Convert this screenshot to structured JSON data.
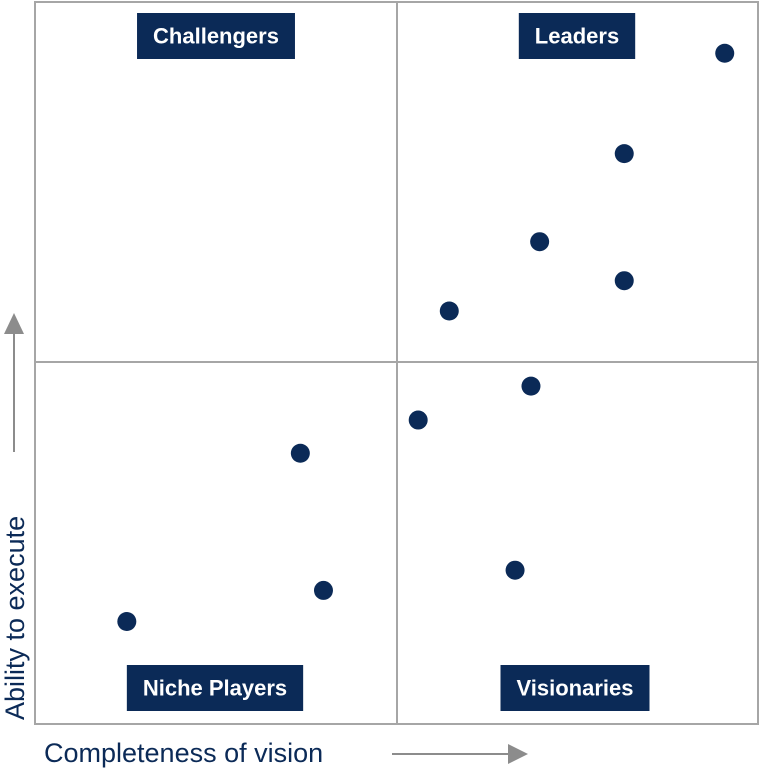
{
  "colors": {
    "navy": "#0b2a57",
    "grid": "#a6a6a6",
    "arrow": "#8c8c8c"
  },
  "chart_data": {
    "type": "scatter",
    "xlabel": "Completeness of vision",
    "ylabel": "Ability to execute",
    "xlim": [
      0,
      1
    ],
    "ylim": [
      0,
      1
    ],
    "grid": true,
    "quadrants": [
      {
        "key": "top-left",
        "label": "Challengers"
      },
      {
        "key": "top-right",
        "label": "Leaders"
      },
      {
        "key": "bottom-left",
        "label": "Niche Players"
      },
      {
        "key": "bottom-right",
        "label": "Visionaries"
      }
    ],
    "points": [
      {
        "x": 0.954,
        "y": 0.929
      },
      {
        "x": 0.815,
        "y": 0.79
      },
      {
        "x": 0.698,
        "y": 0.668
      },
      {
        "x": 0.815,
        "y": 0.614
      },
      {
        "x": 0.573,
        "y": 0.572
      },
      {
        "x": 0.686,
        "y": 0.468
      },
      {
        "x": 0.53,
        "y": 0.421
      },
      {
        "x": 0.367,
        "y": 0.375
      },
      {
        "x": 0.664,
        "y": 0.213
      },
      {
        "x": 0.399,
        "y": 0.185
      },
      {
        "x": 0.127,
        "y": 0.142
      }
    ]
  }
}
